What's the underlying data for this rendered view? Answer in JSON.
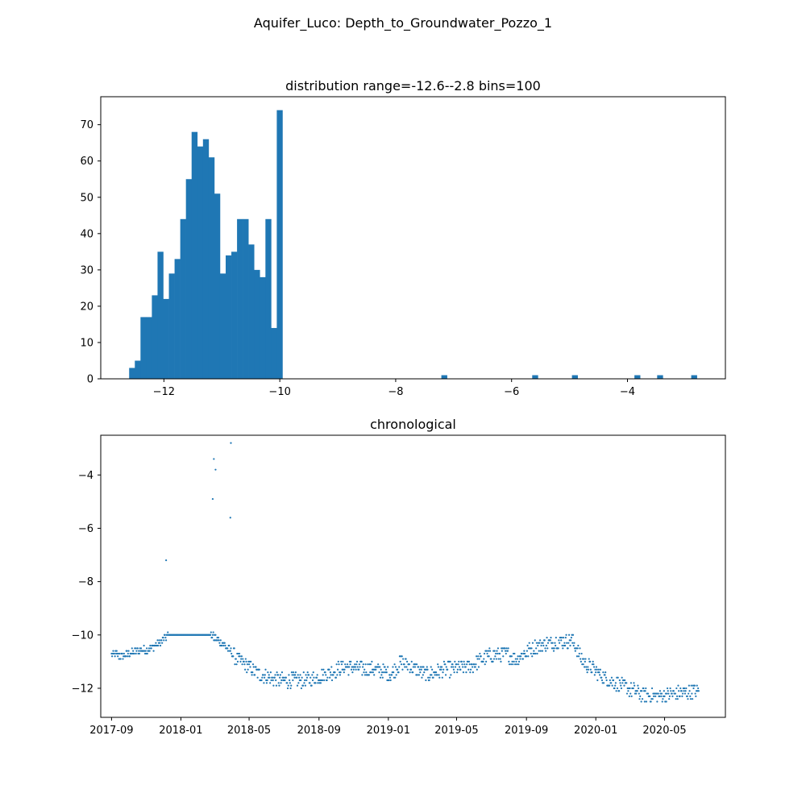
{
  "suptitle": "Aquifer_Luco: Depth_to_Groundwater_Pozzo_1",
  "colors": {
    "series": "#1f77b4"
  },
  "chart_data": [
    {
      "type": "bar",
      "title": "distribution range=-12.6--2.8 bins=100",
      "xlabel": "",
      "ylabel": "",
      "xlim": [
        -13.09,
        -2.31
      ],
      "ylim": [
        0,
        77.7
      ],
      "range": [
        -12.6,
        -2.8
      ],
      "bins": 100,
      "xticks": [
        -12,
        -10,
        -8,
        -6,
        -4
      ],
      "yticks": [
        0,
        10,
        20,
        30,
        40,
        50,
        60,
        70
      ],
      "bars": [
        {
          "x": -12.551,
          "count": 3
        },
        {
          "x": -12.453,
          "count": 5
        },
        {
          "x": -12.355,
          "count": 17
        },
        {
          "x": -12.257,
          "count": 17
        },
        {
          "x": -12.159,
          "count": 23
        },
        {
          "x": -12.061,
          "count": 35
        },
        {
          "x": -11.963,
          "count": 22
        },
        {
          "x": -11.865,
          "count": 29
        },
        {
          "x": -11.767,
          "count": 33
        },
        {
          "x": -11.669,
          "count": 44
        },
        {
          "x": -11.571,
          "count": 55
        },
        {
          "x": -11.473,
          "count": 68
        },
        {
          "x": -11.375,
          "count": 64
        },
        {
          "x": -11.277,
          "count": 66
        },
        {
          "x": -11.179,
          "count": 61
        },
        {
          "x": -11.081,
          "count": 51
        },
        {
          "x": -10.983,
          "count": 29
        },
        {
          "x": -10.885,
          "count": 34
        },
        {
          "x": -10.787,
          "count": 35
        },
        {
          "x": -10.689,
          "count": 44
        },
        {
          "x": -10.591,
          "count": 44
        },
        {
          "x": -10.493,
          "count": 37
        },
        {
          "x": -10.395,
          "count": 30
        },
        {
          "x": -10.297,
          "count": 28
        },
        {
          "x": -10.199,
          "count": 44
        },
        {
          "x": -10.101,
          "count": 14
        },
        {
          "x": -10.003,
          "count": 74
        },
        {
          "x": -7.163,
          "count": 1
        },
        {
          "x": -5.595,
          "count": 1
        },
        {
          "x": -4.909,
          "count": 1
        },
        {
          "x": -3.831,
          "count": 1
        },
        {
          "x": -3.439,
          "count": 1
        },
        {
          "x": -2.851,
          "count": 1
        }
      ]
    },
    {
      "type": "scatter",
      "title": "chronological",
      "xlabel": "",
      "ylabel": "",
      "x_type": "date",
      "xlim": [
        "2017-08-13",
        "2020-08-16"
      ],
      "ylim": [
        -13.09,
        -2.51
      ],
      "xticks": [
        "2017-09",
        "2018-01",
        "2018-05",
        "2018-09",
        "2019-01",
        "2019-05",
        "2019-09",
        "2020-01",
        "2020-05"
      ],
      "yticks": [
        -12,
        -10,
        -8,
        -6,
        -4
      ],
      "outliers": [
        {
          "x": "2017-12-06",
          "y": -7.2
        },
        {
          "x": "2018-02-26",
          "y": -4.9
        },
        {
          "x": "2018-02-28",
          "y": -3.4
        },
        {
          "x": "2018-03-03",
          "y": -3.8
        },
        {
          "x": "2018-03-29",
          "y": -5.6
        },
        {
          "x": "2018-03-30",
          "y": -2.8
        }
      ],
      "trend": [
        {
          "x": "2017-09-01",
          "y": -10.7
        },
        {
          "x": "2017-09-20",
          "y": -10.8
        },
        {
          "x": "2017-10-15",
          "y": -10.6
        },
        {
          "x": "2017-11-10",
          "y": -10.5
        },
        {
          "x": "2017-11-25",
          "y": -10.3
        },
        {
          "x": "2017-12-10",
          "y": -10.0
        },
        {
          "x": "2018-02-22",
          "y": -10.0
        },
        {
          "x": "2018-03-01",
          "y": -10.1
        },
        {
          "x": "2018-03-20",
          "y": -10.4
        },
        {
          "x": "2018-04-10",
          "y": -10.9
        },
        {
          "x": "2018-05-01",
          "y": -11.2
        },
        {
          "x": "2018-05-20",
          "y": -11.5
        },
        {
          "x": "2018-06-20",
          "y": -11.7
        },
        {
          "x": "2018-08-15",
          "y": -11.7
        },
        {
          "x": "2018-09-10",
          "y": -11.5
        },
        {
          "x": "2018-10-15",
          "y": -11.2
        },
        {
          "x": "2018-12-15",
          "y": -11.3
        },
        {
          "x": "2019-01-05",
          "y": -11.5
        },
        {
          "x": "2019-01-25",
          "y": -11.0
        },
        {
          "x": "2019-02-20",
          "y": -11.3
        },
        {
          "x": "2019-03-10",
          "y": -11.5
        },
        {
          "x": "2019-04-10",
          "y": -11.3
        },
        {
          "x": "2019-05-25",
          "y": -11.2
        },
        {
          "x": "2019-06-25",
          "y": -10.8
        },
        {
          "x": "2019-07-25",
          "y": -10.7
        },
        {
          "x": "2019-08-15",
          "y": -10.9
        },
        {
          "x": "2019-09-10",
          "y": -10.5
        },
        {
          "x": "2019-10-10",
          "y": -10.3
        },
        {
          "x": "2019-11-20",
          "y": -10.2
        },
        {
          "x": "2019-12-10",
          "y": -11.0
        },
        {
          "x": "2020-01-15",
          "y": -11.6
        },
        {
          "x": "2020-02-15",
          "y": -11.9
        },
        {
          "x": "2020-03-20",
          "y": -12.2
        },
        {
          "x": "2020-04-20",
          "y": -12.3
        },
        {
          "x": "2020-05-20",
          "y": -12.2
        },
        {
          "x": "2020-06-30",
          "y": -12.1
        }
      ]
    }
  ]
}
